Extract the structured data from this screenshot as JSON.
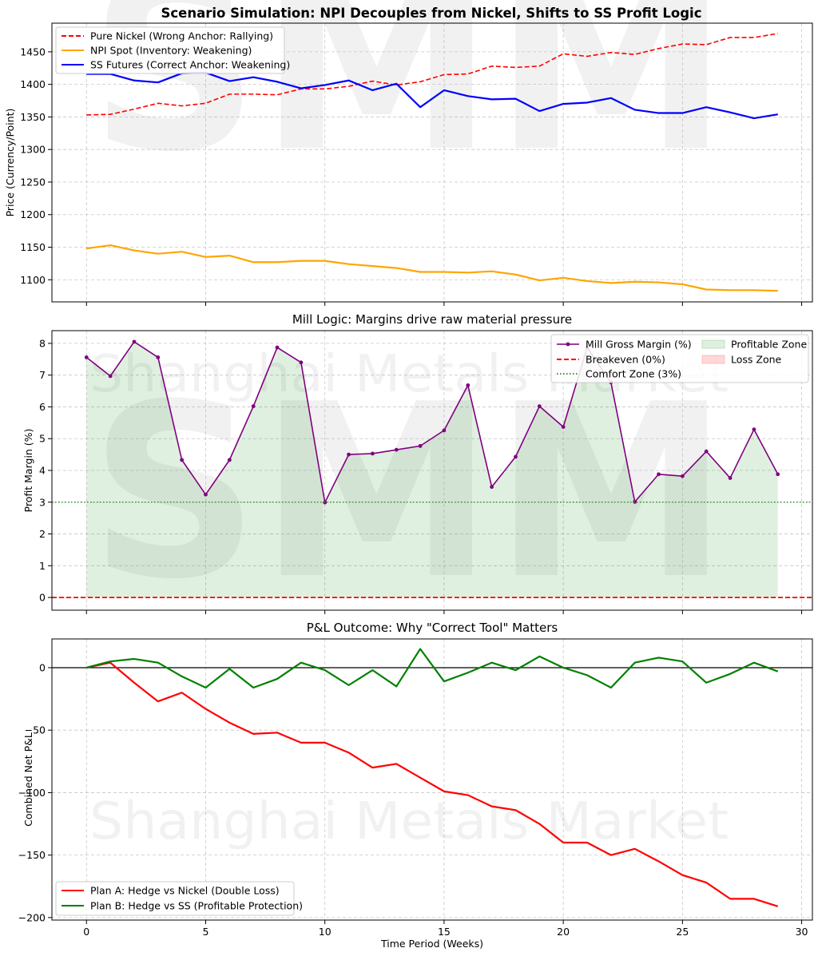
{
  "suptitle": "Scenario Simulation: NPI Decouples from Nickel, Shifts to SS Profit Logic",
  "watermark": {
    "logo": "SMM",
    "text": "Shanghai Metals Market",
    "color": "#ff0000"
  },
  "chart_data": [
    {
      "type": "line",
      "title": "",
      "xlabel": "",
      "ylabel": "Price (Currency/Point)",
      "xlim": [
        -1.45,
        30.45
      ],
      "ylim": [
        1066,
        1494
      ],
      "xticks": [
        0,
        5,
        10,
        15,
        20,
        25,
        30
      ],
      "yticks": [
        1100,
        1150,
        1200,
        1250,
        1300,
        1350,
        1400,
        1450
      ],
      "grid": true,
      "legend": "upper-left",
      "x": [
        0,
        1,
        2,
        3,
        4,
        5,
        6,
        7,
        8,
        9,
        10,
        11,
        12,
        13,
        14,
        15,
        16,
        17,
        18,
        19,
        20,
        21,
        22,
        23,
        24,
        25,
        26,
        27,
        28,
        29
      ],
      "series": [
        {
          "name": "Pure Nickel (Wrong Anchor: Rallying)",
          "color": "#ff0000",
          "style": "dashed",
          "values": [
            1353,
            1354,
            1362,
            1371,
            1367,
            1371,
            1385,
            1385,
            1384,
            1393,
            1393,
            1397,
            1405,
            1399,
            1404,
            1415,
            1416,
            1428,
            1426,
            1428,
            1447,
            1443,
            1449,
            1446,
            1455,
            1462,
            1461,
            1472,
            1472,
            1478
          ]
        },
        {
          "name": "NPI Spot (Inventory: Weakening)",
          "color": "#ffa500",
          "style": "solid",
          "values": [
            1148,
            1153,
            1145,
            1140,
            1143,
            1135,
            1137,
            1127,
            1127,
            1129,
            1129,
            1124,
            1121,
            1118,
            1112,
            1112,
            1111,
            1113,
            1108,
            1099,
            1103,
            1098,
            1095,
            1097,
            1096,
            1093,
            1085,
            1084,
            1084,
            1083
          ]
        },
        {
          "name": "SS Futures (Correct Anchor: Weakening)",
          "color": "#0000ff",
          "style": "solid",
          "values": [
            1416,
            1416,
            1406,
            1403,
            1417,
            1418,
            1405,
            1411,
            1404,
            1394,
            1399,
            1406,
            1391,
            1401,
            1365,
            1391,
            1382,
            1377,
            1378,
            1359,
            1370,
            1372,
            1379,
            1361,
            1356,
            1356,
            1365,
            1357,
            1348,
            1354
          ]
        }
      ]
    },
    {
      "type": "line",
      "title": "Mill Logic: Margins drive raw material pressure",
      "xlabel": "",
      "ylabel": "Profit Margin (%)",
      "xlim": [
        -1.45,
        30.45
      ],
      "ylim": [
        -0.4,
        8.4
      ],
      "xticks": [
        0,
        5,
        10,
        15,
        20,
        25,
        30
      ],
      "yticks": [
        0,
        1,
        2,
        3,
        4,
        5,
        6,
        7,
        8
      ],
      "grid": true,
      "legend": "upper-right",
      "x": [
        0,
        1,
        2,
        3,
        4,
        5,
        6,
        7,
        8,
        9,
        10,
        11,
        12,
        13,
        14,
        15,
        16,
        17,
        18,
        19,
        20,
        21,
        22,
        23,
        24,
        25,
        26,
        27,
        28,
        29
      ],
      "series": [
        {
          "name": "Mill Gross Margin (%)",
          "color": "#800080",
          "style": "solid-marker",
          "values": [
            7.56,
            6.97,
            8.05,
            7.56,
            4.33,
            3.24,
            4.33,
            6.02,
            7.87,
            7.4,
            2.99,
            4.5,
            4.53,
            4.65,
            4.77,
            5.26,
            6.68,
            3.48,
            4.43,
            6.02,
            5.37,
            7.87,
            6.77,
            3.01,
            3.88,
            3.82,
            4.6,
            3.76,
            5.29,
            3.88
          ]
        },
        {
          "name": "Breakeven (0%)",
          "color": "#ff0000",
          "style": "dashed-hline",
          "value": 0
        },
        {
          "name": "Comfort Zone (3%)",
          "color": "#2ca02c",
          "style": "dotted-hline",
          "value": 3
        }
      ],
      "areas": [
        {
          "name": "Profitable Zone",
          "color": "#008000",
          "opacity": 0.12
        },
        {
          "name": "Loss Zone",
          "color": "#ff0000",
          "opacity": 0.15
        }
      ]
    },
    {
      "type": "line",
      "title": "P&L Outcome: Why \"Correct Tool\" Matters",
      "xlabel": "Time Period (Weeks)",
      "ylabel": "Combined Net P&L",
      "xlim": [
        -1.45,
        30.45
      ],
      "ylim": [
        -202,
        23
      ],
      "xticks": [
        0,
        5,
        10,
        15,
        20,
        25,
        30
      ],
      "yticks": [
        -200,
        -150,
        -100,
        -50,
        0
      ],
      "grid": true,
      "legend": "lower-left",
      "zero_line": true,
      "x": [
        0,
        1,
        2,
        3,
        4,
        5,
        6,
        7,
        8,
        9,
        10,
        11,
        12,
        13,
        14,
        15,
        16,
        17,
        18,
        19,
        20,
        21,
        22,
        23,
        24,
        25,
        26,
        27,
        28,
        29
      ],
      "series": [
        {
          "name": "Plan A: Hedge vs Nickel (Double Loss)",
          "color": "#ff0000",
          "style": "solid",
          "values": [
            0,
            4,
            -12,
            -27,
            -20,
            -33,
            -44,
            -53,
            -52,
            -60,
            -60,
            -68,
            -80,
            -77,
            -88,
            -99,
            -102,
            -111,
            -114,
            -125,
            -140,
            -140,
            -150,
            -145,
            -155,
            -166,
            -172,
            -185,
            -185,
            -191
          ]
        },
        {
          "name": "Plan B: Hedge vs SS (Profitable Protection)",
          "color": "#008000",
          "style": "solid",
          "values": [
            0,
            5,
            7,
            4,
            -7,
            -16,
            -1,
            -16,
            -9,
            4,
            -2,
            -14,
            -2,
            -15,
            15,
            -11,
            -4,
            4,
            -2,
            9,
            0,
            -6,
            -16,
            4,
            8,
            5,
            -12,
            -5,
            4,
            -3
          ]
        }
      ]
    }
  ]
}
